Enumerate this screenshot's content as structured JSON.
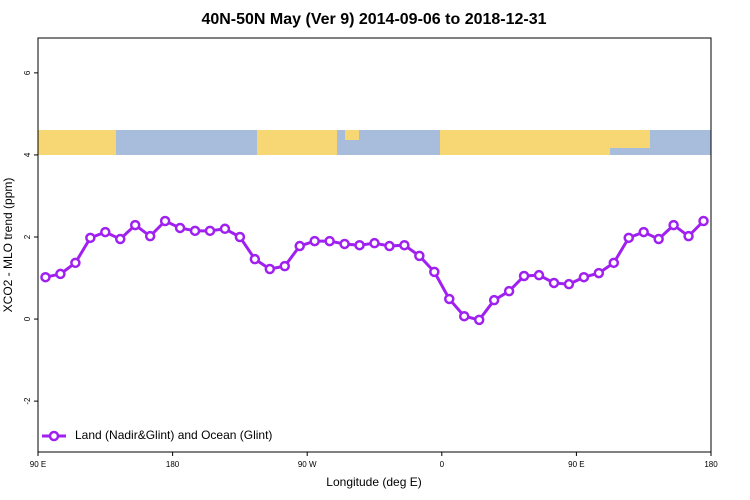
{
  "chart_data": {
    "type": "line",
    "title": "40N-50N May (Ver 9)   2014-09-06 to 2018-12-31",
    "x_label": "Longitude (deg E)",
    "y_label": "XCO2 - MLO trend (ppm)",
    "x": [
      95,
      105,
      115,
      125,
      135,
      145,
      155,
      165,
      175,
      185,
      195,
      205,
      215,
      225,
      235,
      245,
      255,
      265,
      275,
      285,
      295,
      305,
      315,
      325,
      335,
      345,
      355,
      365,
      375,
      385,
      395,
      405,
      415,
      425,
      435,
      445,
      455,
      465,
      475,
      485,
      495,
      505,
      515,
      525,
      535
    ],
    "series": [
      {
        "name": "Land (Nadir&Glint) and Ocean (Glint)",
        "color": "#a020f0",
        "values": [
          1.02,
          1.1,
          1.37,
          1.98,
          2.12,
          1.95,
          2.29,
          2.02,
          2.39,
          2.22,
          2.15,
          2.15,
          2.2,
          2.0,
          1.46,
          1.22,
          1.29,
          1.78,
          1.9,
          1.9,
          1.83,
          1.8,
          1.85,
          1.78,
          1.8,
          1.54,
          1.15,
          0.49,
          0.07,
          -0.02,
          0.46,
          0.68,
          1.05,
          1.07,
          0.88,
          0.85,
          1.02,
          1.12,
          1.37,
          1.98,
          2.12,
          1.95,
          2.29,
          2.02,
          2.39
        ]
      }
    ],
    "xlim": [
      90,
      540
    ],
    "xticks": [
      {
        "value": 90,
        "label": "90 E"
      },
      180,
      {
        "value": 270,
        "label": "90 W"
      },
      {
        "value": 360,
        "label": "0"
      },
      {
        "value": 450,
        "label": "90 E"
      },
      {
        "value": 540,
        "label": "180"
      }
    ],
    "ylim": [
      -3.24,
      6.85
    ],
    "yticks": [
      -2,
      0,
      2,
      4,
      6
    ],
    "legend": "bottom-left"
  }
}
